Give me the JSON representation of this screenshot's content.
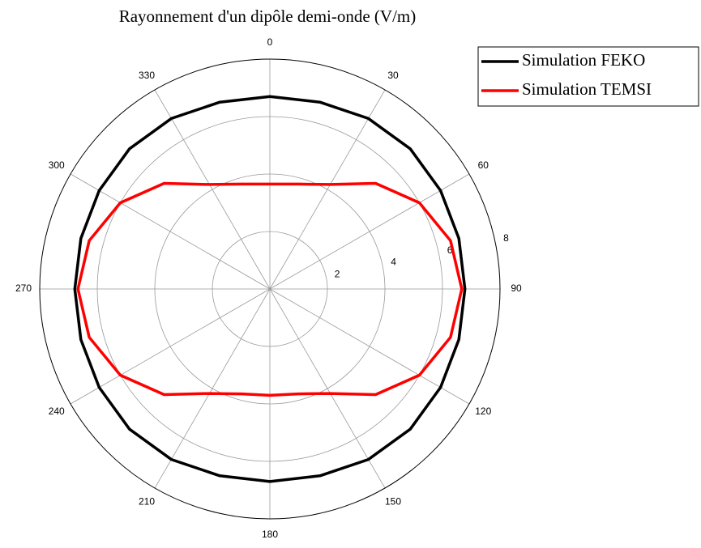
{
  "chart_data": {
    "type": "polar",
    "title": "Rayonnement d'un dipôle demi-onde (V/m)",
    "direction": "clockwise",
    "zero": "top",
    "theta": [
      0,
      15,
      30,
      45,
      60,
      75,
      90,
      105,
      120,
      135,
      150,
      165,
      180,
      195,
      210,
      225,
      240,
      255,
      270,
      285,
      300,
      315,
      330,
      345
    ],
    "series": [
      {
        "name": "Simulation FEKO",
        "color": "#000000",
        "values": [
          6.7,
          6.73,
          6.85,
          6.9,
          6.85,
          6.8,
          6.78,
          6.8,
          6.85,
          6.9,
          6.85,
          6.73,
          6.7,
          6.73,
          6.85,
          6.9,
          6.85,
          6.8,
          6.78,
          6.8,
          6.85,
          6.9,
          6.85,
          6.73
        ]
      },
      {
        "name": "Simulation TEMSI",
        "color": "#ff0000",
        "values": [
          3.65,
          3.78,
          4.2,
          5.2,
          6.0,
          6.5,
          6.67,
          6.5,
          6.0,
          5.2,
          4.2,
          3.78,
          3.7,
          3.78,
          4.2,
          5.2,
          6.0,
          6.5,
          6.67,
          6.5,
          6.0,
          5.2,
          4.2,
          3.78
        ]
      }
    ],
    "rlim": [
      0,
      8
    ],
    "rticks": [
      2,
      4,
      6,
      8
    ],
    "thetaticks": [
      0,
      30,
      60,
      90,
      120,
      150,
      180,
      210,
      240,
      270,
      300,
      330
    ],
    "grid": true,
    "legend": "upper right"
  }
}
